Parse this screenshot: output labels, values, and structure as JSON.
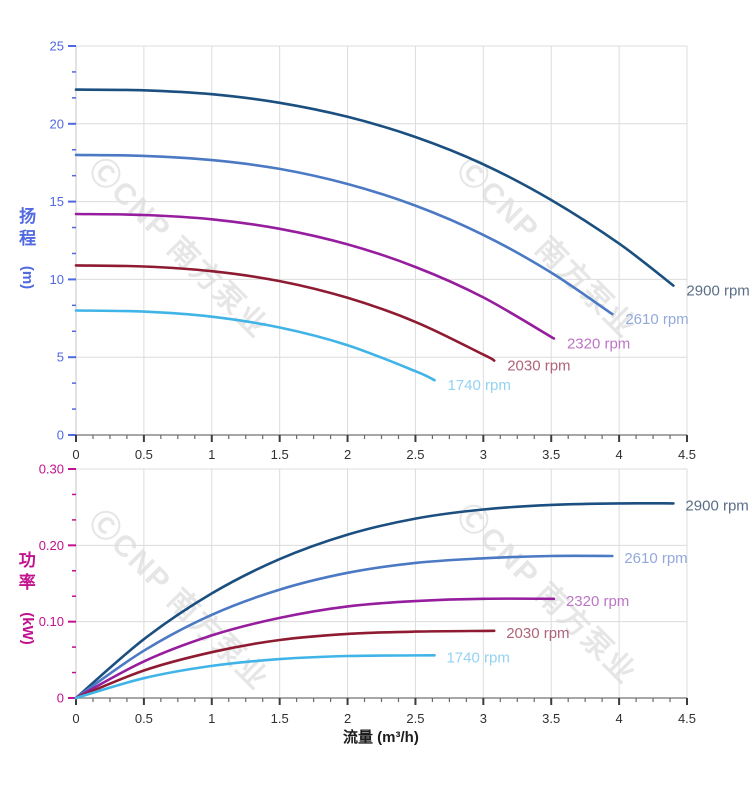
{
  "watermark": "ⒸCNP 南方泵业",
  "grid_color": "#dcdcdc",
  "chart_data": [
    {
      "type": "line",
      "name": "head-vs-flow",
      "xlabel": "流量 (m³/h)",
      "ylabel": "扬程",
      "ylabel_unit": "(m)",
      "xlim": [
        0,
        4.5
      ],
      "ylim": [
        0,
        25
      ],
      "grid": true,
      "legend_position": "right-of-curve-end",
      "axis_color": "#5069e1",
      "xticks": [
        0,
        0.5,
        1,
        1.5,
        2,
        2.5,
        3,
        3.5,
        4,
        4.5
      ],
      "xtick_labels": [
        "0",
        "0.5",
        "1",
        "1.5",
        "2",
        "2.5",
        "3",
        "3.5",
        "4",
        "4.5"
      ],
      "yticks": [
        0,
        5,
        10,
        15,
        20,
        25
      ],
      "ytick_labels": [
        "0",
        "5",
        "10",
        "15",
        "20",
        "25"
      ],
      "series": [
        {
          "name": "2900 rpm",
          "color": "#1b4f80",
          "label_color": "#5a6e87",
          "points": [
            [
              0,
              22.2
            ],
            [
              0.5,
              22.15
            ],
            [
              1,
              21.9
            ],
            [
              1.5,
              21.35
            ],
            [
              2,
              20.45
            ],
            [
              2.5,
              19.15
            ],
            [
              3,
              17.4
            ],
            [
              3.5,
              15.1
            ],
            [
              4,
              12.3
            ],
            [
              4.4,
              9.6
            ]
          ]
        },
        {
          "name": "2610 rpm",
          "color": "#4b79c4",
          "label_color": "#93a9dc",
          "points": [
            [
              0,
              18.0
            ],
            [
              0.5,
              17.94
            ],
            [
              1,
              17.67
            ],
            [
              1.5,
              17.1
            ],
            [
              2,
              16.13
            ],
            [
              2.5,
              14.74
            ],
            [
              3,
              12.86
            ],
            [
              3.5,
              10.44
            ],
            [
              3.95,
              7.77
            ]
          ]
        },
        {
          "name": "2320 rpm",
          "color": "#951d9e",
          "label_color": "#bd76c6",
          "points": [
            [
              0,
              14.2
            ],
            [
              0.5,
              14.14
            ],
            [
              1,
              13.86
            ],
            [
              1.5,
              13.25
            ],
            [
              2,
              12.25
            ],
            [
              2.5,
              10.8
            ],
            [
              3,
              8.84
            ],
            [
              3.52,
              6.2
            ]
          ]
        },
        {
          "name": "2030 rpm",
          "color": "#8e1b31",
          "label_color": "#b06478",
          "points": [
            [
              0,
              10.9
            ],
            [
              0.5,
              10.83
            ],
            [
              1,
              10.53
            ],
            [
              1.5,
              9.89
            ],
            [
              2,
              8.82
            ],
            [
              2.5,
              7.27
            ],
            [
              3,
              5.17
            ],
            [
              3.08,
              4.78
            ]
          ]
        },
        {
          "name": "1740 rpm",
          "color": "#41b4e7",
          "label_color": "#94d3f2",
          "points": [
            [
              0,
              8.0
            ],
            [
              0.5,
              7.93
            ],
            [
              1,
              7.6
            ],
            [
              1.5,
              6.91
            ],
            [
              2,
              5.77
            ],
            [
              2.5,
              4.1
            ],
            [
              2.64,
              3.52
            ]
          ]
        }
      ]
    },
    {
      "type": "line",
      "name": "power-vs-flow",
      "xlabel": "流量 (m³/h)",
      "ylabel": "功率",
      "ylabel_unit": "(kW)",
      "xlim": [
        0,
        4.5
      ],
      "ylim": [
        0,
        0.3
      ],
      "grid": true,
      "legend_position": "right-of-curve-end",
      "axis_color": "#c2128e",
      "xticks": [
        0,
        0.5,
        1,
        1.5,
        2,
        2.5,
        3,
        3.5,
        4,
        4.5
      ],
      "xtick_labels": [
        "0",
        "0.5",
        "1",
        "1.5",
        "2",
        "2.5",
        "3",
        "3.5",
        "4",
        "4.5"
      ],
      "yticks": [
        0,
        0.1,
        0.2,
        0.3
      ],
      "ytick_labels": [
        "0",
        "0.10",
        "0.20",
        "0.30"
      ],
      "series": [
        {
          "name": "2900 rpm",
          "color": "#1b4f80",
          "label_color": "#5a6e87",
          "points": [
            [
              0,
              0
            ],
            [
              0.5,
              0.077
            ],
            [
              1,
              0.137
            ],
            [
              1.5,
              0.182
            ],
            [
              2,
              0.214
            ],
            [
              2.5,
              0.235
            ],
            [
              3,
              0.247
            ],
            [
              3.5,
              0.253
            ],
            [
              4,
              0.255
            ],
            [
              4.4,
              0.255
            ]
          ]
        },
        {
          "name": "2610 rpm",
          "color": "#4b79c4",
          "label_color": "#93a9dc",
          "points": [
            [
              0,
              0
            ],
            [
              0.5,
              0.062
            ],
            [
              1,
              0.109
            ],
            [
              1.5,
              0.142
            ],
            [
              2,
              0.164
            ],
            [
              2.5,
              0.177
            ],
            [
              3,
              0.183
            ],
            [
              3.5,
              0.186
            ],
            [
              3.95,
              0.186
            ]
          ]
        },
        {
          "name": "2320 rpm",
          "color": "#951d9e",
          "label_color": "#bd76c6",
          "points": [
            [
              0,
              0
            ],
            [
              0.5,
              0.048
            ],
            [
              1,
              0.082
            ],
            [
              1.5,
              0.105
            ],
            [
              2,
              0.12
            ],
            [
              2.5,
              0.127
            ],
            [
              3,
              0.13
            ],
            [
              3.52,
              0.13
            ]
          ]
        },
        {
          "name": "2030 rpm",
          "color": "#8e1b31",
          "label_color": "#b06478",
          "points": [
            [
              0,
              0
            ],
            [
              0.5,
              0.036
            ],
            [
              1,
              0.06
            ],
            [
              1.5,
              0.076
            ],
            [
              2,
              0.084
            ],
            [
              2.5,
              0.087
            ],
            [
              3.08,
              0.088
            ]
          ]
        },
        {
          "name": "1740 rpm",
          "color": "#41b4e7",
          "label_color": "#94d3f2",
          "points": [
            [
              0,
              0
            ],
            [
              0.5,
              0.026
            ],
            [
              1,
              0.042
            ],
            [
              1.5,
              0.051
            ],
            [
              2,
              0.055
            ],
            [
              2.64,
              0.056
            ]
          ]
        }
      ]
    }
  ]
}
